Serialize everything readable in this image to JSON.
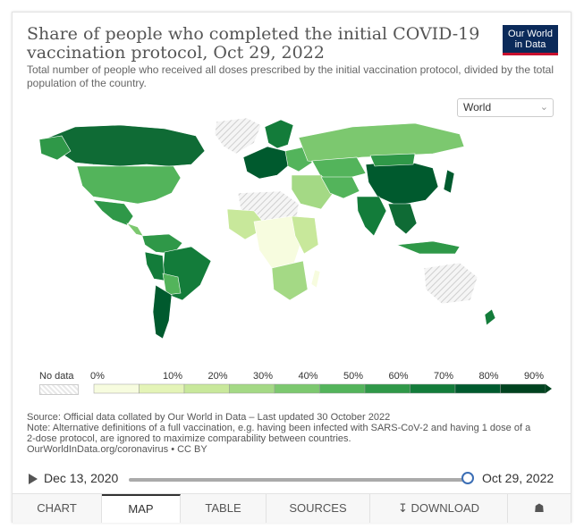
{
  "header": {
    "title": "Share of people who completed the initial COVID-19 vaccination protocol, Oct 29, 2022",
    "subtitle": "Total number of people who received all doses prescribed by the initial vaccination protocol, divided by the total population of the country.",
    "logo_line1": "Our World",
    "logo_line2": "in Data"
  },
  "controls": {
    "region_selected": "World"
  },
  "legend": {
    "no_data_label": "No data",
    "ticks": [
      "0%",
      "10%",
      "20%",
      "30%",
      "40%",
      "50%",
      "60%",
      "70%",
      "80%",
      "90%"
    ],
    "colors": [
      "#f7fcdf",
      "#e4f4b7",
      "#c8e89b",
      "#a4d985",
      "#7cc86f",
      "#53b45b",
      "#2f9848",
      "#137c3a",
      "#005a2e",
      "#00421f"
    ]
  },
  "footer": {
    "source": "Source: Official data collated by Our World in Data – Last updated 30 October 2022",
    "note_line1": "Note: Alternative definitions of a full vaccination, e.g. having been infected with SARS-CoV-2 and having 1 dose of a",
    "note_line2": "2-dose protocol, are ignored to maximize comparability between countries.",
    "license": "OurWorldInData.org/coronavirus • CC BY"
  },
  "timeline": {
    "start_date": "Dec 13, 2020",
    "end_date": "Oct 29, 2022",
    "position": 1.0
  },
  "tabs": [
    {
      "label": "CHART"
    },
    {
      "label": "MAP"
    },
    {
      "label": "TABLE"
    },
    {
      "label": "SOURCES"
    },
    {
      "label": "DOWNLOAD"
    }
  ],
  "active_tab": "MAP"
}
